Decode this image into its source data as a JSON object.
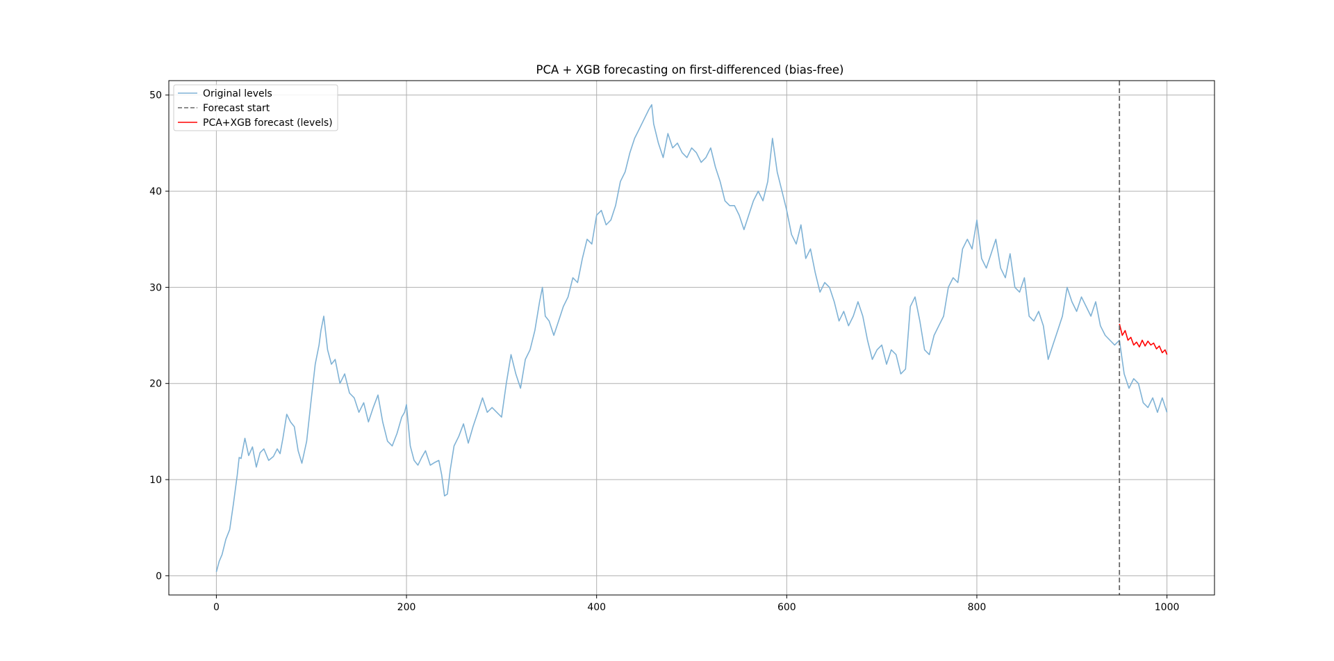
{
  "chart_data": {
    "type": "line",
    "title": "PCA + XGB forecasting on first-differenced (bias-free)",
    "xlabel": "",
    "ylabel": "",
    "xlim": [
      -50,
      1050
    ],
    "ylim": [
      -2,
      51.5
    ],
    "x_ticks": [
      0,
      200,
      400,
      600,
      800,
      1000
    ],
    "y_ticks": [
      0,
      10,
      20,
      30,
      40,
      50
    ],
    "grid": true,
    "legend_position": "top-left",
    "forecast_start": 950,
    "series": [
      {
        "name": "Original levels",
        "color": "#7fb2d5",
        "x": [
          0,
          3,
          6,
          10,
          14,
          18,
          22,
          24,
          26,
          30,
          34,
          38,
          42,
          46,
          50,
          55,
          60,
          64,
          67,
          70,
          74,
          78,
          82,
          86,
          90,
          95,
          100,
          104,
          108,
          110,
          113,
          117,
          121,
          125,
          130,
          135,
          140,
          145,
          150,
          155,
          160,
          165,
          170,
          175,
          180,
          185,
          190,
          195,
          198,
          200,
          204,
          208,
          212,
          216,
          220,
          225,
          230,
          234,
          237,
          240,
          243,
          246,
          250,
          255,
          260,
          265,
          270,
          275,
          280,
          285,
          290,
          295,
          300,
          305,
          310,
          315,
          320,
          325,
          330,
          335,
          340,
          343,
          346,
          350,
          355,
          360,
          365,
          370,
          375,
          380,
          385,
          390,
          395,
          400,
          405,
          410,
          415,
          420,
          425,
          430,
          435,
          440,
          445,
          450,
          455,
          458,
          460,
          465,
          470,
          475,
          480,
          485,
          490,
          495,
          500,
          505,
          510,
          515,
          520,
          525,
          530,
          535,
          540,
          545,
          550,
          555,
          560,
          565,
          570,
          575,
          580,
          585,
          590,
          595,
          600,
          605,
          610,
          615,
          620,
          625,
          630,
          635,
          640,
          645,
          650,
          655,
          660,
          665,
          670,
          675,
          680,
          685,
          690,
          695,
          700,
          705,
          710,
          715,
          720,
          725,
          730,
          735,
          740,
          745,
          750,
          755,
          760,
          765,
          770,
          775,
          780,
          785,
          790,
          795,
          800,
          805,
          810,
          815,
          820,
          825,
          830,
          835,
          840,
          845,
          850,
          855,
          860,
          865,
          870,
          875,
          880,
          885,
          890,
          895,
          900,
          905,
          910,
          915,
          920,
          925,
          930,
          935,
          940,
          945,
          950,
          955,
          960,
          965,
          970,
          975,
          980,
          985,
          990,
          995,
          1000
        ],
        "y": [
          0.4,
          1.5,
          2.2,
          3.8,
          4.8,
          7.5,
          10.5,
          12.3,
          12.2,
          14.3,
          12.5,
          13.4,
          11.3,
          12.8,
          13.2,
          12.0,
          12.4,
          13.2,
          12.7,
          14.3,
          16.8,
          16.0,
          15.5,
          13.0,
          11.7,
          14.0,
          18.5,
          22.0,
          24.0,
          25.5,
          27.0,
          23.5,
          22.0,
          22.5,
          20.0,
          21.0,
          19.0,
          18.5,
          17.0,
          18.0,
          16.0,
          17.5,
          18.8,
          16.0,
          14.0,
          13.5,
          14.8,
          16.5,
          17.0,
          17.8,
          13.5,
          12.0,
          11.5,
          12.3,
          13.0,
          11.5,
          11.8,
          12.0,
          10.5,
          8.3,
          8.5,
          11.0,
          13.5,
          14.5,
          15.8,
          13.8,
          15.5,
          17.0,
          18.5,
          17.0,
          17.5,
          17.0,
          16.5,
          20.0,
          23.0,
          21.0,
          19.5,
          22.5,
          23.5,
          25.5,
          28.5,
          30.0,
          27.0,
          26.5,
          25.0,
          26.5,
          28.0,
          29.0,
          31.0,
          30.5,
          33.0,
          35.0,
          34.5,
          37.5,
          38.0,
          36.5,
          37.0,
          38.5,
          41.0,
          42.0,
          44.0,
          45.5,
          46.5,
          47.5,
          48.5,
          49.0,
          47.0,
          45.0,
          43.5,
          46.0,
          44.5,
          45.0,
          44.0,
          43.5,
          44.5,
          44.0,
          43.0,
          43.5,
          44.5,
          42.5,
          41.0,
          39.0,
          38.5,
          38.5,
          37.5,
          36.0,
          37.5,
          39.0,
          40.0,
          39.0,
          41.0,
          45.5,
          42.0,
          40.0,
          38.0,
          35.5,
          34.5,
          36.5,
          33.0,
          34.0,
          31.5,
          29.5,
          30.5,
          30.0,
          28.5,
          26.5,
          27.5,
          26.0,
          27.0,
          28.5,
          27.0,
          24.5,
          22.5,
          23.5,
          24.0,
          22.0,
          23.5,
          23.0,
          21.0,
          21.5,
          28.0,
          29.0,
          26.5,
          23.5,
          23.0,
          25.0,
          26.0,
          27.0,
          30.0,
          31.0,
          30.5,
          34.0,
          35.0,
          34.0,
          37.0,
          33.0,
          32.0,
          33.5,
          35.0,
          32.0,
          31.0,
          33.5,
          30.0,
          29.5,
          31.0,
          27.0,
          26.5,
          27.5,
          26.0,
          22.5,
          24.0,
          25.5,
          27.0,
          30.0,
          28.5,
          27.5,
          29.0,
          28.0,
          27.0,
          28.5,
          26.0,
          25.0,
          24.5,
          24.0,
          24.5,
          21.0,
          19.5,
          20.5,
          20.0,
          18.0,
          17.5,
          18.5,
          17.0,
          18.5,
          17.0
        ]
      },
      {
        "name": "PCA+XGB forecast (levels)",
        "color": "#ff0000",
        "x": [
          950,
          953,
          956,
          959,
          962,
          965,
          968,
          971,
          974,
          977,
          980,
          983,
          986,
          989,
          992,
          995,
          998,
          1000
        ],
        "y": [
          26.2,
          25.0,
          25.5,
          24.5,
          24.8,
          24.0,
          24.3,
          23.8,
          24.5,
          23.9,
          24.4,
          24.0,
          24.2,
          23.6,
          23.9,
          23.2,
          23.5,
          23.0
        ]
      }
    ],
    "legend": [
      {
        "label": "Original levels",
        "style": "solid",
        "color": "#7fb2d5"
      },
      {
        "label": "Forecast start",
        "style": "dashed",
        "color": "#666666"
      },
      {
        "label": "PCA+XGB forecast (levels)",
        "style": "solid",
        "color": "#ff0000"
      }
    ]
  }
}
